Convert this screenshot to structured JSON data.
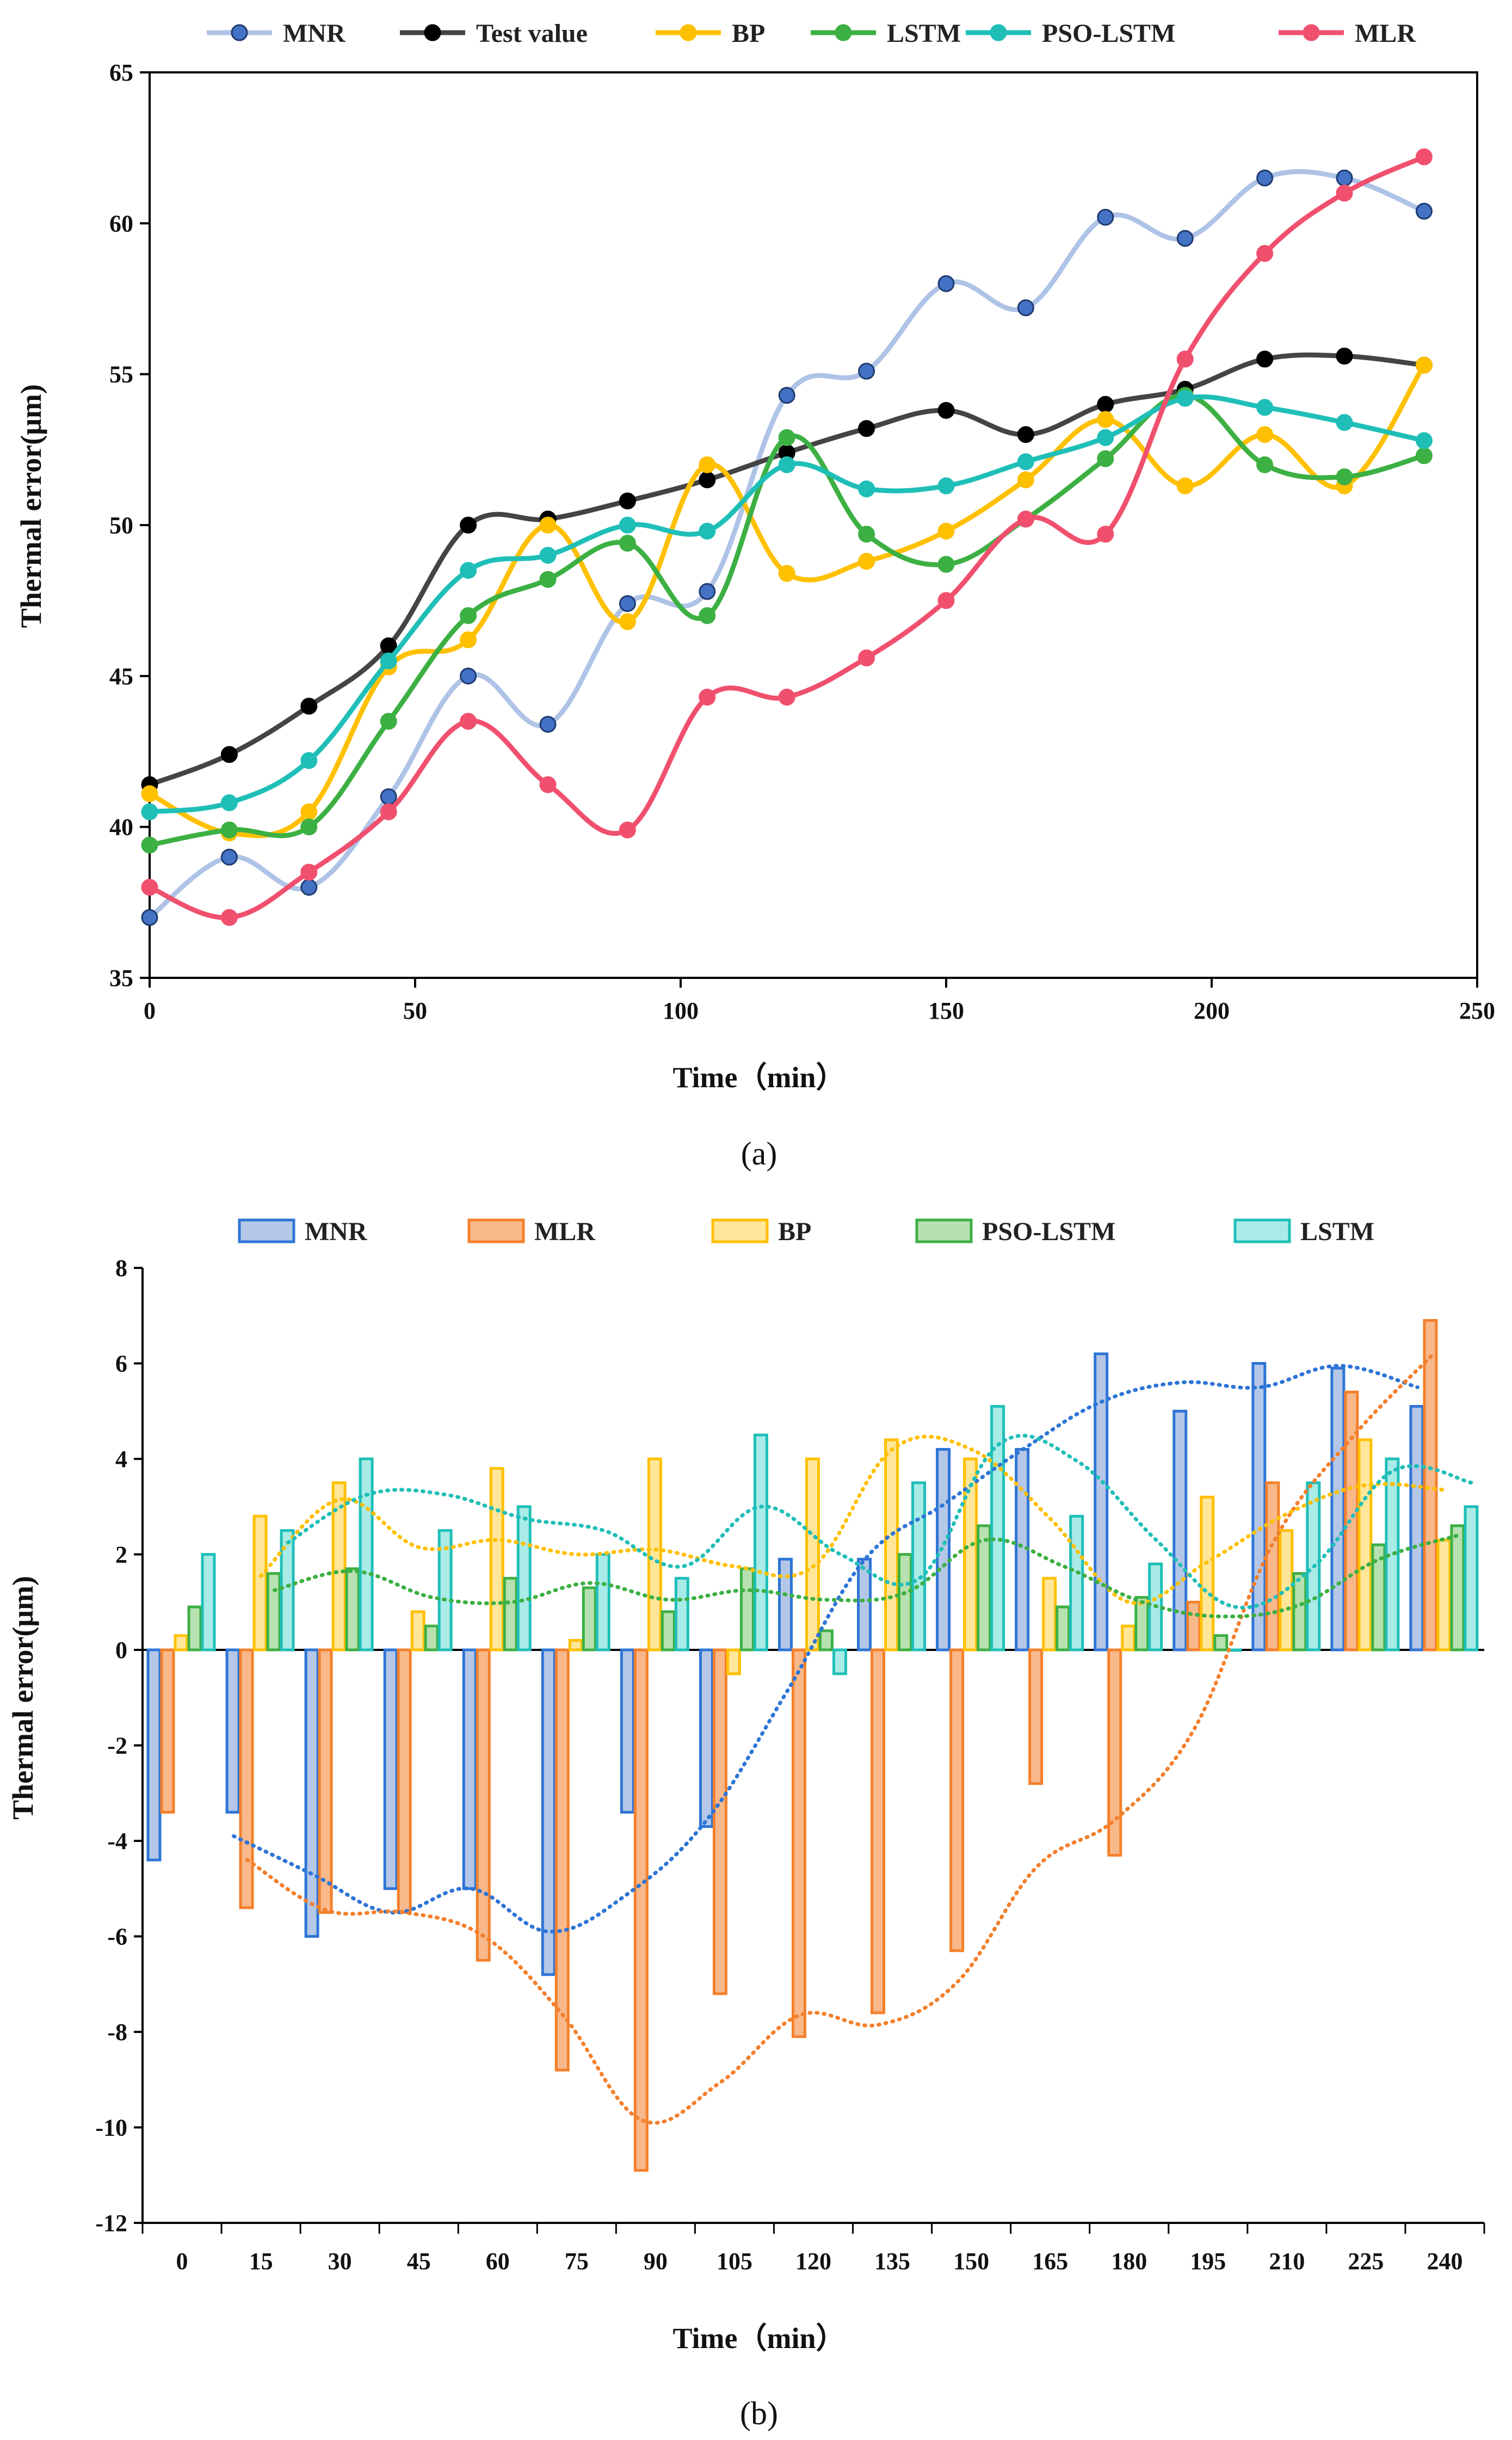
{
  "chart_data": [
    {
      "type": "line",
      "panel_label": "(a)",
      "xlabel": "Time（min）",
      "ylabel": "Thermal error(μm)",
      "xlim": [
        0,
        250
      ],
      "ylim": [
        35,
        65
      ],
      "xticks": [
        0,
        50,
        100,
        150,
        200,
        250
      ],
      "yticks": [
        35,
        40,
        45,
        50,
        55,
        60,
        65
      ],
      "x": [
        0,
        15,
        30,
        45,
        60,
        75,
        90,
        105,
        120,
        135,
        150,
        165,
        180,
        195,
        210,
        225,
        240
      ],
      "legend_position": "top",
      "series": [
        {
          "name": "MNR",
          "color": "#aec3e6",
          "marker_fill": "#4472c4",
          "marker_edge": "#1f3b70",
          "values": [
            37.0,
            39.0,
            38.0,
            41.0,
            45.0,
            43.4,
            47.4,
            47.8,
            54.3,
            55.1,
            58.0,
            57.2,
            60.2,
            59.5,
            61.5,
            61.5,
            60.4
          ]
        },
        {
          "name": "Test value",
          "color": "#444444",
          "marker_fill": "#000000",
          "marker_edge": "#000000",
          "values": [
            41.4,
            42.4,
            44.0,
            46.0,
            50.0,
            50.2,
            50.8,
            51.5,
            52.4,
            53.2,
            53.8,
            53.0,
            54.0,
            54.5,
            55.5,
            55.6,
            55.3
          ]
        },
        {
          "name": "BP",
          "color": "#ffc000",
          "marker_fill": "#ffc000",
          "marker_edge": "#ffc000",
          "values": [
            41.1,
            39.8,
            40.5,
            45.3,
            46.2,
            50.0,
            46.8,
            52.0,
            48.4,
            48.8,
            49.8,
            51.5,
            53.5,
            51.3,
            53.0,
            51.3,
            55.3
          ]
        },
        {
          "name": "LSTM",
          "color": "#3cb043",
          "marker_fill": "#3cb043",
          "marker_edge": "#3cb043",
          "values": [
            39.4,
            39.9,
            40.0,
            43.5,
            47.0,
            48.2,
            49.4,
            47.0,
            52.9,
            49.7,
            48.7,
            50.2,
            52.2,
            54.3,
            52.0,
            51.6,
            52.3
          ]
        },
        {
          "name": "PSO-LSTM",
          "color": "#1fbfb8",
          "marker_fill": "#1fbfb8",
          "marker_edge": "#1fbfb8",
          "values": [
            40.5,
            40.8,
            42.2,
            45.5,
            48.5,
            49.0,
            50.0,
            49.8,
            52.0,
            51.2,
            51.3,
            52.1,
            52.9,
            54.2,
            53.9,
            53.4,
            52.8
          ]
        },
        {
          "name": "MLR",
          "color": "#f0506e",
          "marker_fill": "#f0506e",
          "marker_edge": "#f0506e",
          "values": [
            38.0,
            37.0,
            38.5,
            40.5,
            43.5,
            41.4,
            39.9,
            44.3,
            44.3,
            45.6,
            47.5,
            50.2,
            49.7,
            55.5,
            59.0,
            61.0,
            62.2
          ]
        }
      ]
    },
    {
      "type": "bar",
      "panel_label": "(b)",
      "xlabel": "Time（min）",
      "ylabel": "Thermal error(μm)",
      "ylim": [
        -12,
        8
      ],
      "yticks": [
        -12,
        -10,
        -8,
        -6,
        -4,
        -2,
        0,
        2,
        4,
        6,
        8
      ],
      "categories": [
        "0",
        "15",
        "30",
        "45",
        "60",
        "75",
        "90",
        "105",
        "120",
        "135",
        "150",
        "165",
        "180",
        "195",
        "210",
        "225",
        "240"
      ],
      "legend_position": "top",
      "trendlines": "dotted moving-average per series",
      "series": [
        {
          "name": "MNR",
          "color": "#2e75d6",
          "fill": "#b4c7e7",
          "values": [
            -4.4,
            -3.4,
            -6.0,
            -5.0,
            -5.0,
            -6.8,
            -3.4,
            -3.7,
            1.9,
            1.9,
            4.2,
            4.2,
            6.2,
            5.0,
            6.0,
            5.9,
            5.1
          ]
        },
        {
          "name": "MLR",
          "color": "#f4802c",
          "fill": "#f8b88a",
          "values": [
            -3.4,
            -5.4,
            -5.5,
            -5.5,
            -6.5,
            -8.8,
            -10.9,
            -7.2,
            -8.1,
            -7.6,
            -6.3,
            -2.8,
            -4.3,
            1.0,
            3.5,
            5.4,
            6.9
          ]
        },
        {
          "name": "BP",
          "color": "#ffc000",
          "fill": "#ffe699",
          "values": [
            0.3,
            2.8,
            3.5,
            0.8,
            3.8,
            0.2,
            4.0,
            -0.5,
            4.0,
            4.4,
            4.0,
            1.5,
            0.5,
            3.2,
            2.5,
            4.4,
            2.3
          ]
        },
        {
          "name": "PSO-LSTM",
          "color": "#3cb043",
          "fill": "#b7e1b0",
          "values": [
            0.9,
            1.6,
            1.7,
            0.5,
            1.5,
            1.3,
            0.8,
            1.7,
            0.4,
            2.0,
            2.6,
            0.9,
            1.1,
            0.3,
            1.6,
            2.2,
            2.6
          ]
        },
        {
          "name": "LSTM",
          "color": "#1fbfb8",
          "fill": "#a8ebe7",
          "values": [
            2.0,
            2.5,
            4.0,
            2.5,
            3.0,
            2.0,
            1.5,
            4.5,
            -0.5,
            3.5,
            5.1,
            2.8,
            1.8,
            0.0,
            3.5,
            4.0,
            3.0
          ]
        }
      ]
    }
  ]
}
